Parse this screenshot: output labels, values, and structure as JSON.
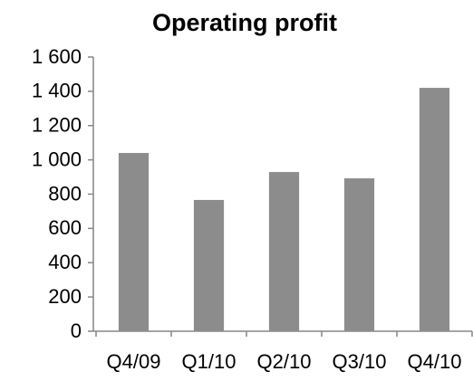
{
  "chart_data": {
    "type": "bar",
    "title": "Operating profit",
    "categories": [
      "Q4/09",
      "Q1/10",
      "Q2/10",
      "Q3/10",
      "Q4/10"
    ],
    "values": [
      1040,
      766,
      929,
      892,
      1420
    ],
    "color": "#8c8c8c",
    "ylim": [
      0,
      1600
    ],
    "yticks": [
      0,
      200,
      400,
      600,
      800,
      {
        "value": 1000,
        "label": "1 000"
      },
      {
        "value": 1200,
        "label": "1 200"
      },
      {
        "value": 1400,
        "label": "1 400"
      },
      {
        "value": 1600,
        "label": "1 600"
      }
    ],
    "grid": false
  }
}
